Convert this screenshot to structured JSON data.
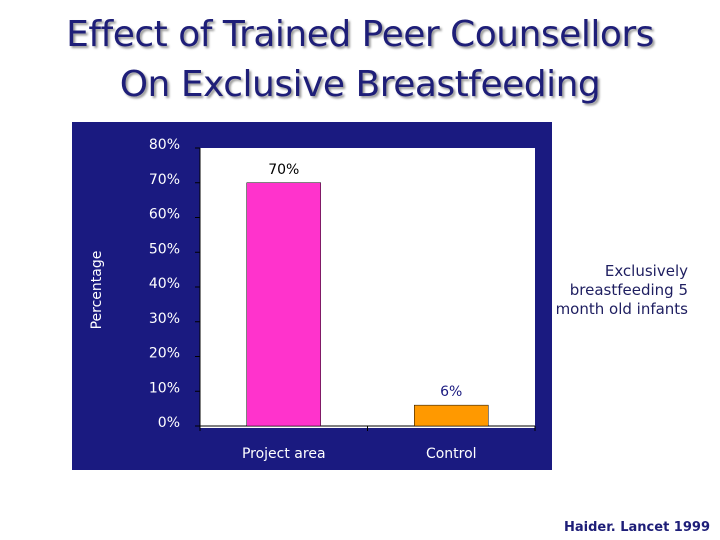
{
  "chart_data": {
    "type": "bar",
    "title": [
      "Effect of Trained Peer Counsellors",
      "On Exclusive Breastfeeding"
    ],
    "y_label": "Percentage",
    "categories": [
      "Project area",
      "Control"
    ],
    "series": [
      {
        "name": "Exclusively breastfeeding 5 month old infants",
        "colors": [
          "#ff33cc",
          "#ff9900"
        ],
        "values": [
          70,
          6
        ],
        "value_labels": [
          "70%",
          "6%"
        ]
      }
    ],
    "ylim": [
      0,
      80
    ],
    "yticks": [
      {
        "value": 0,
        "label": "0%"
      },
      {
        "value": 10,
        "label": "10%"
      },
      {
        "value": 20,
        "label": "20%"
      },
      {
        "value": 30,
        "label": "30%"
      },
      {
        "value": 40,
        "label": "40%"
      },
      {
        "value": 50,
        "label": "50%"
      },
      {
        "value": 60,
        "label": "60%"
      },
      {
        "value": 70,
        "label": "70%"
      },
      {
        "value": 80,
        "label": "80%"
      }
    ],
    "source": "Haider.  Lancet 1999"
  }
}
